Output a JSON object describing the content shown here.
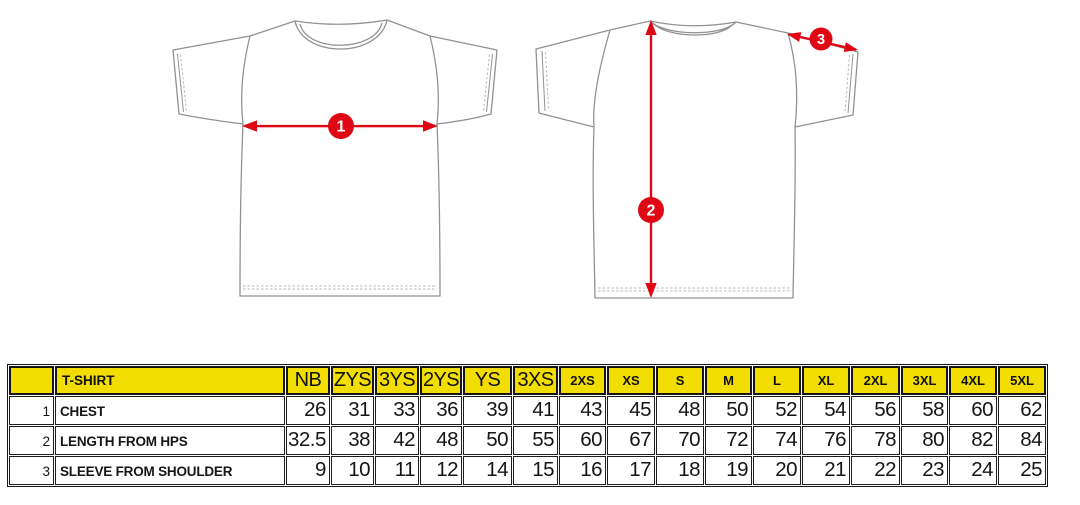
{
  "diagram": {
    "front_view_label": "t-shirt front view",
    "back_view_label": "t-shirt back view",
    "markers": [
      {
        "id": "1",
        "label": "1",
        "measures": "chest width"
      },
      {
        "id": "2",
        "label": "2",
        "measures": "length from hps"
      },
      {
        "id": "3",
        "label": "3",
        "measures": "sleeve from shoulder"
      }
    ],
    "colors": {
      "arrow": "#e00715",
      "outline": "#929292",
      "stitch": "#b8b8b8",
      "badge_text": "#ffffff"
    }
  },
  "table": {
    "colors": {
      "header_bg": "#f2dd00",
      "border": "#161616",
      "text": "#161616"
    },
    "corner_label": "",
    "product_label": "T-SHIRT",
    "size_headers": [
      {
        "label": "NB",
        "size_class": "large"
      },
      {
        "label": "ZYS",
        "size_class": "large"
      },
      {
        "label": "3YS",
        "size_class": "large"
      },
      {
        "label": "2YS",
        "size_class": "large"
      },
      {
        "label": "YS",
        "size_class": "large"
      },
      {
        "label": "3XS",
        "size_class": "large"
      },
      {
        "label": "2XS",
        "size_class": "small"
      },
      {
        "label": "XS",
        "size_class": "small"
      },
      {
        "label": "S",
        "size_class": "small"
      },
      {
        "label": "M",
        "size_class": "small"
      },
      {
        "label": "L",
        "size_class": "small"
      },
      {
        "label": "XL",
        "size_class": "small"
      },
      {
        "label": "2XL",
        "size_class": "small"
      },
      {
        "label": "3XL",
        "size_class": "small"
      },
      {
        "label": "4XL",
        "size_class": "small"
      },
      {
        "label": "5XL",
        "size_class": "small"
      }
    ],
    "rows": [
      {
        "num": "1",
        "label": "CHEST",
        "values": [
          "26",
          "31",
          "33",
          "36",
          "39",
          "41",
          "43",
          "45",
          "48",
          "50",
          "52",
          "54",
          "56",
          "58",
          "60",
          "62"
        ]
      },
      {
        "num": "2",
        "label": "LENGTH FROM HPS",
        "values": [
          "32.5",
          "38",
          "42",
          "48",
          "50",
          "55",
          "60",
          "67",
          "70",
          "72",
          "74",
          "76",
          "78",
          "80",
          "82",
          "84"
        ]
      },
      {
        "num": "3",
        "label": "SLEEVE FROM SHOULDER",
        "values": [
          "9",
          "10",
          "11",
          "12",
          "14",
          "15",
          "16",
          "17",
          "18",
          "19",
          "20",
          "21",
          "22",
          "23",
          "24",
          "25"
        ]
      }
    ]
  }
}
